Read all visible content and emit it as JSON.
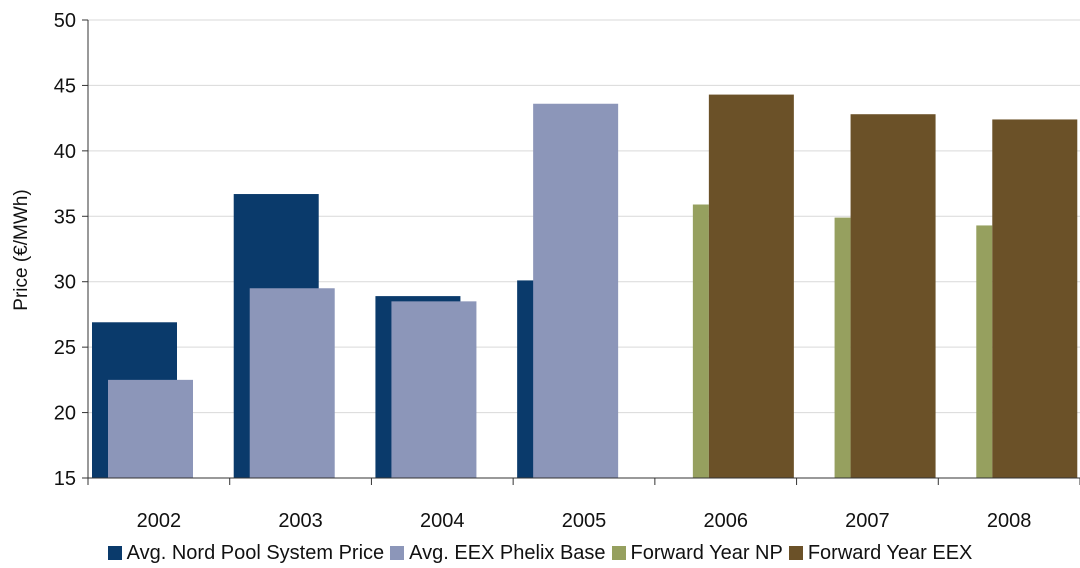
{
  "chart_data": {
    "type": "bar",
    "categories": [
      "2002",
      "2003",
      "2004",
      "2005",
      "2006",
      "2007",
      "2008"
    ],
    "ylabel": "Price (€/MWh)",
    "xlabel": "",
    "ylim": [
      15,
      50
    ],
    "yticks": [
      15,
      20,
      25,
      30,
      35,
      40,
      45,
      50
    ],
    "grid": true,
    "legend_position": "bottom",
    "series": [
      {
        "name": "Avg. Nord Pool System Price",
        "color": "#0a3a6b",
        "values": [
          26.9,
          36.7,
          28.9,
          30.1,
          null,
          null,
          null
        ]
      },
      {
        "name": "Avg. EEX Phelix Base",
        "color": "#8c96b9",
        "values": [
          22.5,
          29.5,
          28.5,
          43.6,
          null,
          null,
          null
        ]
      },
      {
        "name": "Forward Year NP",
        "color": "#96a05f",
        "values": [
          null,
          null,
          null,
          null,
          35.9,
          34.9,
          34.3
        ]
      },
      {
        "name": "Forward Year EEX",
        "color": "#6b5128",
        "values": [
          null,
          null,
          null,
          null,
          44.3,
          42.8,
          42.4
        ]
      }
    ]
  }
}
